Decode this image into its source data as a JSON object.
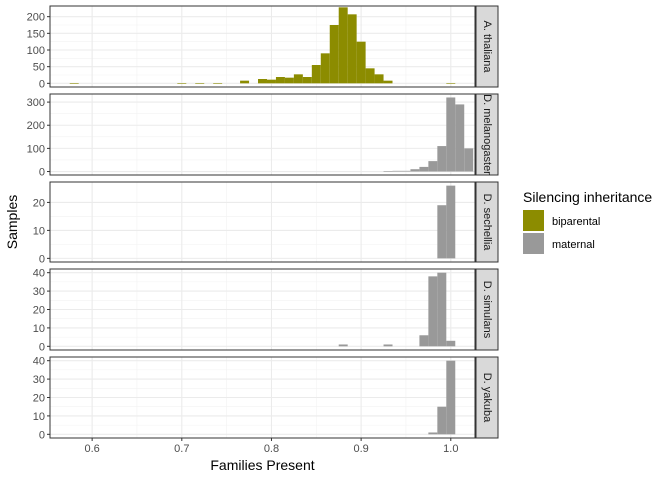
{
  "chart_data": {
    "type": "bar",
    "subtype": "faceted histogram",
    "title": "",
    "xlabel": "Families Present",
    "ylabel": "Samples",
    "xlim": [
      0.553,
      1.027
    ],
    "x_ticks": [
      0.6,
      0.7,
      0.8,
      0.9,
      1.0
    ],
    "x_tick_labels": [
      "0.6",
      "0.7",
      "0.8",
      "0.9",
      "1.0"
    ],
    "bin_width": 0.01,
    "grid": true,
    "theme": "bw",
    "legend": {
      "title": "Silencing inheritance",
      "placement": "right",
      "entries": [
        {
          "name": "biparental",
          "color": "#8c8c00"
        },
        {
          "name": "maternal",
          "color": "#999999"
        }
      ]
    },
    "facets": [
      {
        "strip": "A. thaliana",
        "fill": "biparental",
        "ylim": [
          -11,
          232
        ],
        "y_ticks": [
          0,
          50,
          100,
          150,
          200
        ],
        "bins": [
          [
            0.58,
            1
          ],
          [
            0.7,
            1
          ],
          [
            0.72,
            1
          ],
          [
            0.74,
            1
          ],
          [
            0.77,
            8
          ],
          [
            0.79,
            13
          ],
          [
            0.8,
            11
          ],
          [
            0.81,
            19
          ],
          [
            0.82,
            17
          ],
          [
            0.83,
            27
          ],
          [
            0.84,
            19
          ],
          [
            0.85,
            55
          ],
          [
            0.86,
            90
          ],
          [
            0.87,
            175
          ],
          [
            0.88,
            228
          ],
          [
            0.89,
            207
          ],
          [
            0.9,
            125
          ],
          [
            0.91,
            45
          ],
          [
            0.92,
            27
          ],
          [
            0.93,
            8
          ],
          [
            1.0,
            1
          ]
        ]
      },
      {
        "strip": "D. melanogaster",
        "fill": "maternal",
        "ylim": [
          -15,
          335
        ],
        "y_ticks": [
          0,
          100,
          200,
          300
        ],
        "bins": [
          [
            0.93,
            2
          ],
          [
            0.94,
            3
          ],
          [
            0.95,
            3
          ],
          [
            0.96,
            10
          ],
          [
            0.97,
            20
          ],
          [
            0.98,
            45
          ],
          [
            0.99,
            110
          ],
          [
            1.0,
            320
          ],
          [
            1.01,
            290
          ],
          [
            1.02,
            100
          ]
        ]
      },
      {
        "strip": "D. sechellia",
        "fill": "maternal",
        "ylim": [
          -1.3,
          27.3
        ],
        "y_ticks": [
          0,
          10,
          20
        ],
        "bins": [
          [
            0.99,
            19
          ],
          [
            1.0,
            26
          ]
        ]
      },
      {
        "strip": "D. simulans",
        "fill": "maternal",
        "ylim": [
          -2,
          42
        ],
        "y_ticks": [
          0,
          10,
          20,
          30,
          40
        ],
        "bins": [
          [
            0.88,
            1
          ],
          [
            0.93,
            1
          ],
          [
            0.97,
            6
          ],
          [
            0.98,
            38
          ],
          [
            0.99,
            40
          ],
          [
            1.0,
            3
          ]
        ]
      },
      {
        "strip": "D. yakuba",
        "fill": "maternal",
        "ylim": [
          -2,
          42
        ],
        "y_ticks": [
          0,
          10,
          20,
          30,
          40
        ],
        "bins": [
          [
            0.98,
            1
          ],
          [
            0.99,
            15
          ],
          [
            1.0,
            40
          ]
        ]
      }
    ]
  }
}
